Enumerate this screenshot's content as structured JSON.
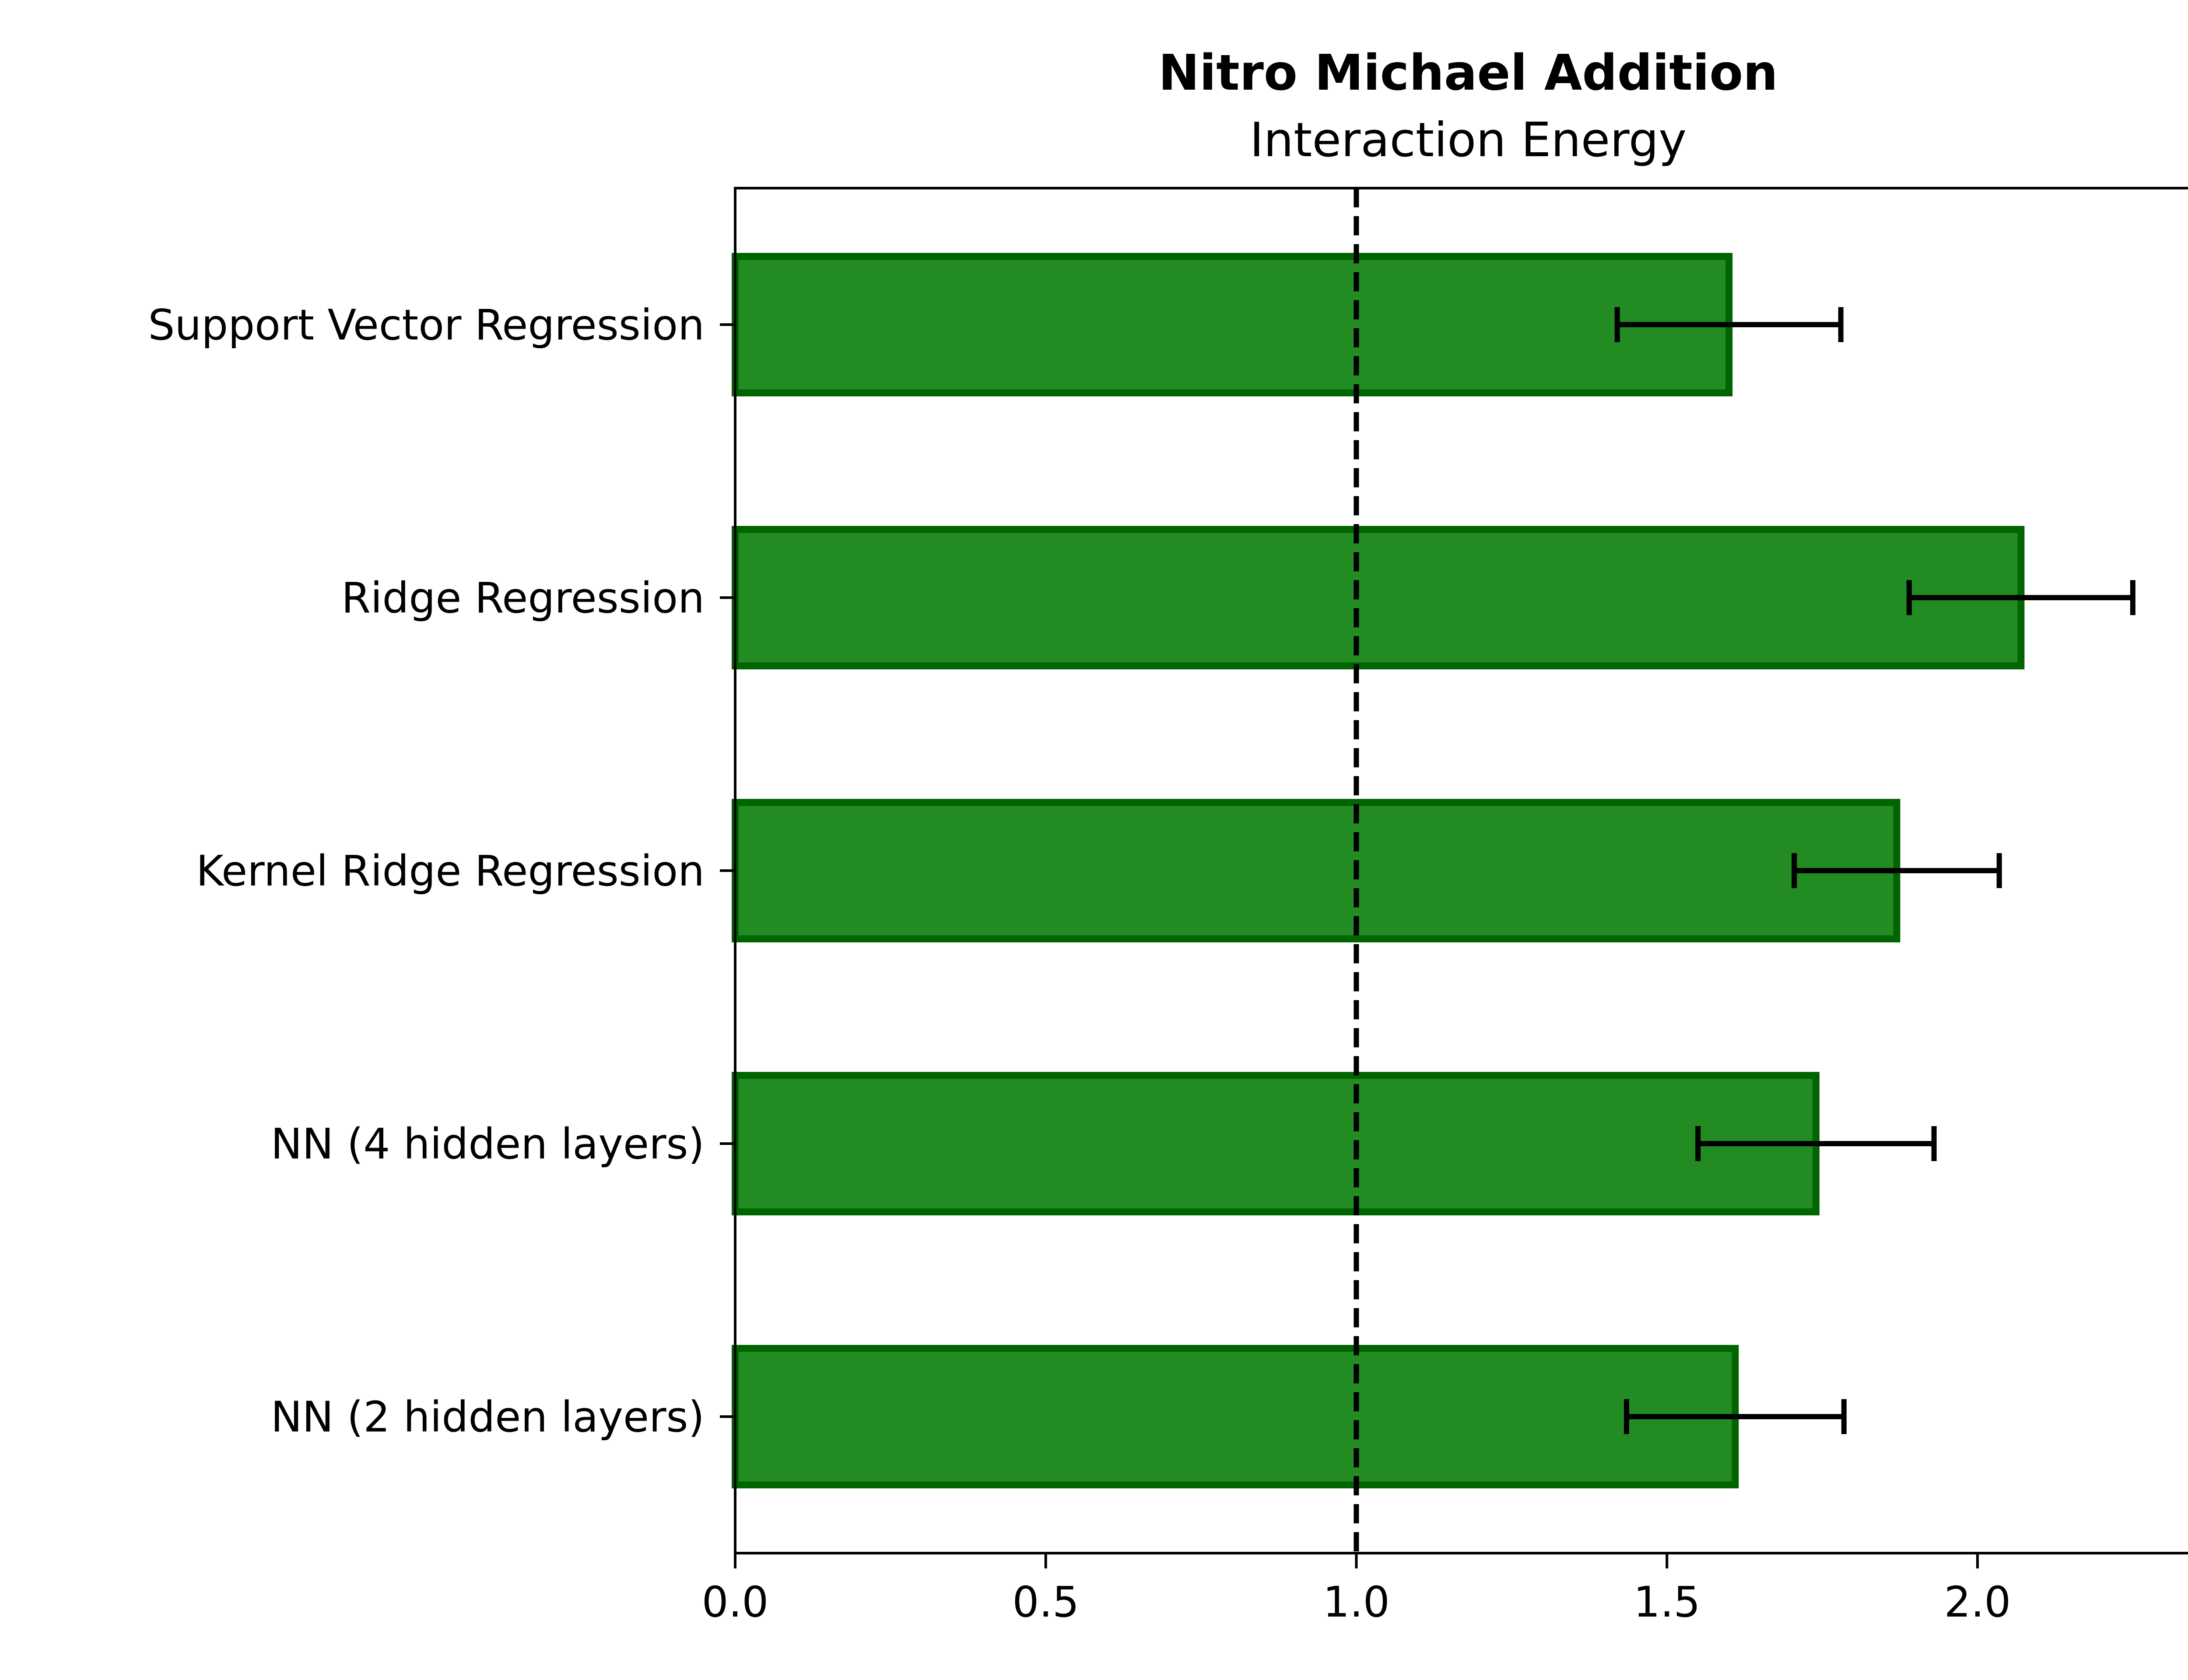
{
  "chart_data": {
    "type": "bar",
    "orientation": "horizontal",
    "title": "Nitro Michael Addition",
    "subtitle": "Interaction Energy",
    "categories": [
      "Support Vector Regression",
      "Ridge Regression",
      "Kernel Ridge Regression",
      "NN (4 hidden layers)",
      "NN (2 hidden layers)"
    ],
    "values": [
      1.6,
      2.07,
      1.87,
      1.74,
      1.61
    ],
    "errors": [
      0.18,
      0.18,
      0.165,
      0.19,
      0.175
    ],
    "xlim": [
      0,
      2.36
    ],
    "xticks": [
      0.0,
      0.5,
      1.0,
      1.5,
      2.0
    ],
    "xtick_labels": [
      "0.0",
      "0.5",
      "1.0",
      "1.5",
      "2.0"
    ],
    "reference_line": {
      "x": 1.0,
      "style": "dashed"
    },
    "xlabel": "",
    "ylabel": "",
    "grid": false,
    "colors": {
      "bar_fill": "#228b22",
      "bar_edge": "#006400",
      "errorbar": "#000000",
      "reference_line": "#000000",
      "axes": "#000000"
    }
  }
}
